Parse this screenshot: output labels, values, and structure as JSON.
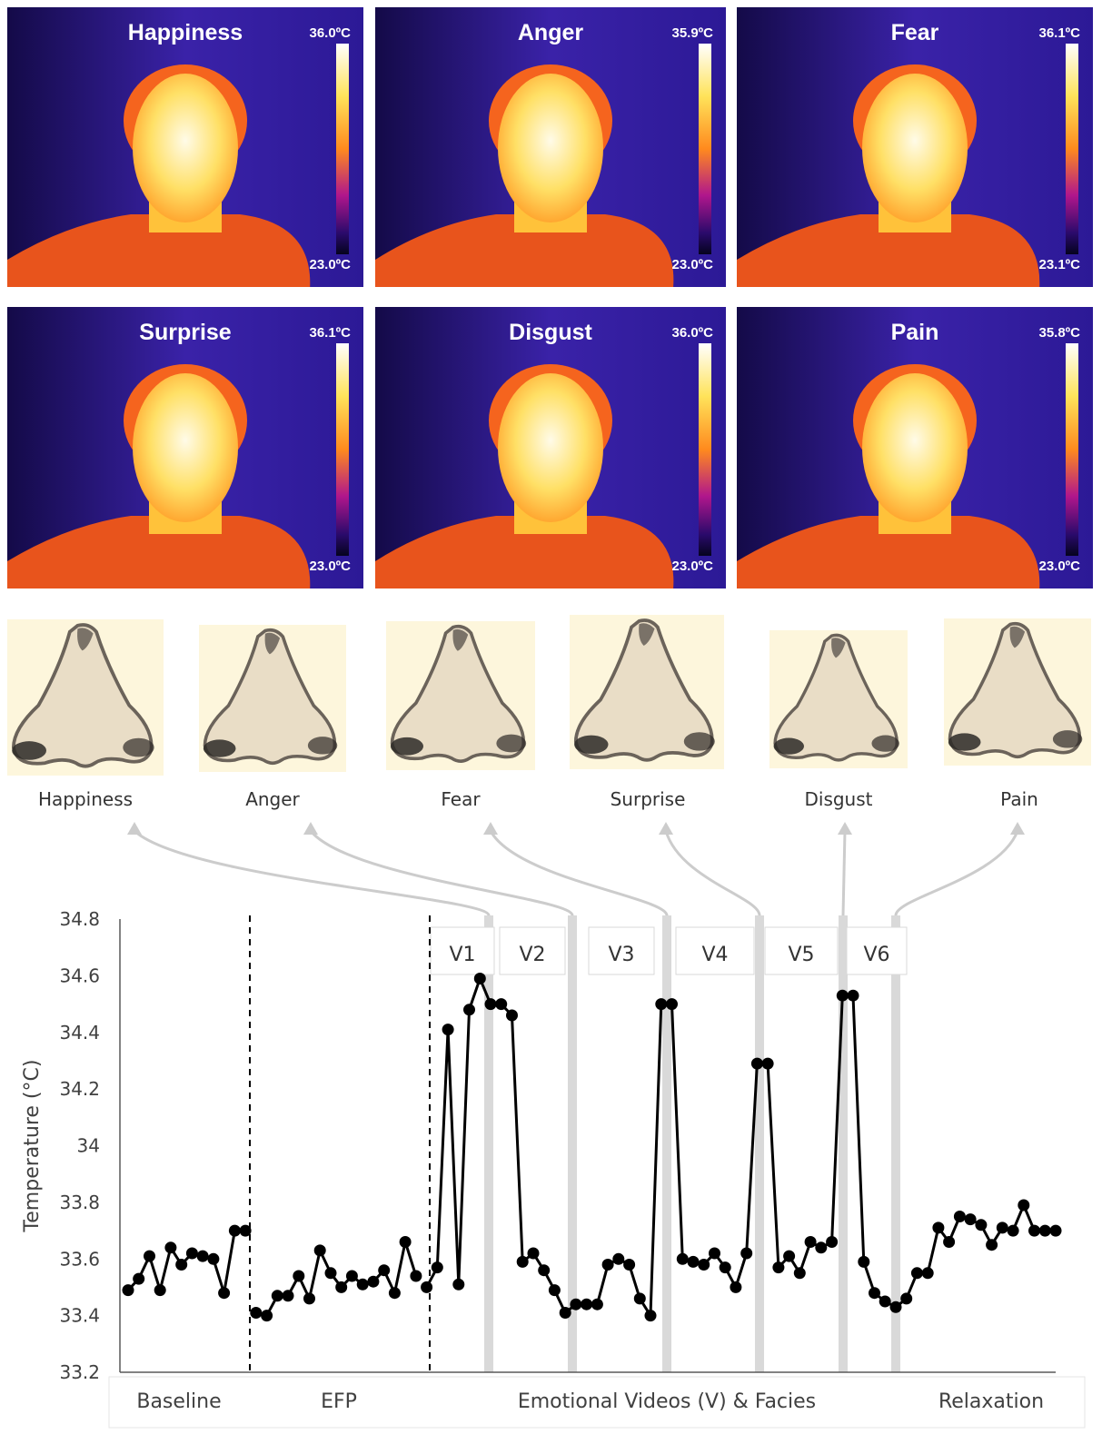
{
  "thermal_panels": [
    {
      "label": "Happiness",
      "max": "36.0ºC",
      "min": "23.0ºC"
    },
    {
      "label": "Anger",
      "max": "35.9ºC",
      "min": "23.0ºC"
    },
    {
      "label": "Fear",
      "max": "36.1ºC",
      "min": "23.1ºC"
    },
    {
      "label": "Surprise",
      "max": "36.1ºC",
      "min": "23.0ºC"
    },
    {
      "label": "Disgust",
      "max": "36.0ºC",
      "min": "23.0ºC"
    },
    {
      "label": "Pain",
      "max": "35.8ºC",
      "min": "23.0ºC"
    }
  ],
  "nose_panels": [
    "Happiness",
    "Anger",
    "Fear",
    "Surprise",
    "Disgust",
    "Pain"
  ],
  "colors": {
    "line": "#000000",
    "highlight": "#d9d9d9",
    "arrow": "#cccccc",
    "nose_bg": "#fdf6dc"
  },
  "chart_data": {
    "type": "line",
    "ylabel": "Temperature (°C)",
    "xlabel": "",
    "ylim": [
      33.2,
      34.8
    ],
    "yticks": [
      "33.2",
      "33.4",
      "33.6",
      "33.8",
      "34",
      "34.2",
      "34.4",
      "34.6",
      "34.8"
    ],
    "phases": [
      "Baseline",
      "EFP",
      "Emotional Videos (V) & Facies",
      "Relaxation"
    ],
    "video_labels": [
      "V1",
      "V2",
      "V3",
      "V4",
      "V5",
      "V6"
    ],
    "series": [
      {
        "values": [
          33.49,
          33.53,
          33.61,
          33.49,
          33.64,
          33.58,
          33.62,
          33.61,
          33.6,
          33.48,
          33.7,
          33.7,
          33.41,
          33.4,
          33.47,
          33.47,
          33.54,
          33.46,
          33.63,
          33.55,
          33.5,
          33.54,
          33.51,
          33.52,
          33.56,
          33.48,
          33.66,
          33.54,
          33.5,
          33.57,
          34.41,
          33.51,
          34.48,
          34.59,
          34.5,
          34.5,
          34.46,
          33.59,
          33.62,
          33.56,
          33.49,
          33.41,
          33.44,
          33.44,
          33.44,
          33.58,
          33.6,
          33.58,
          33.46,
          33.4,
          34.5,
          34.5,
          33.6,
          33.59,
          33.58,
          33.62,
          33.57,
          33.5,
          33.62,
          34.29,
          34.29,
          33.57,
          33.61,
          33.55,
          33.66,
          33.64,
          33.66,
          34.53,
          34.53,
          33.59,
          33.48,
          33.45,
          33.43,
          33.46,
          33.55,
          33.55,
          33.71,
          33.66,
          33.75,
          33.74,
          33.72,
          33.65,
          33.71,
          33.7,
          33.79,
          33.7,
          33.7,
          33.7
        ]
      }
    ]
  }
}
